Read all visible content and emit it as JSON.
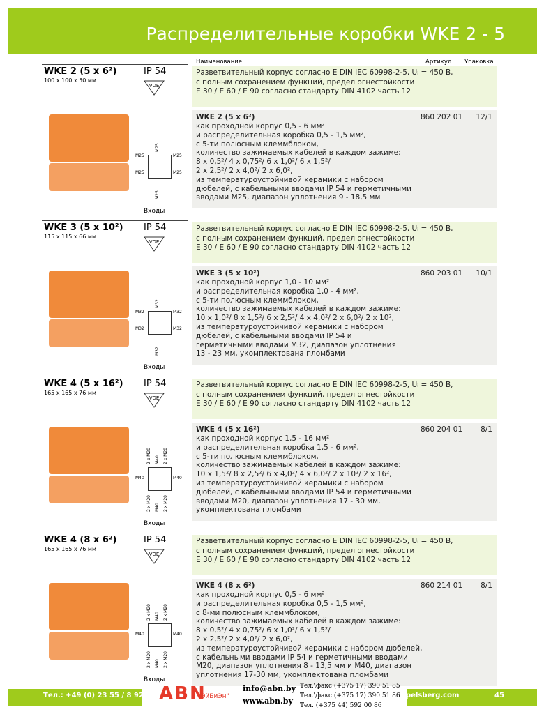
{
  "header": {
    "title": "Распределительные коробки WKE 2 - 5"
  },
  "columns": {
    "name": "Наименование",
    "article": "Артикул",
    "pack": "Упаковка"
  },
  "products": [
    {
      "name": "WKE 2 (5 x 6²)",
      "dims": "100 x 100 x 50 мм",
      "ip": "IP 54",
      "cert": "VDE",
      "general": [
        "Разветвительный корпус согласно E DIN IEC 60998-2-5, Uᵢ = 450 В,",
        "с полным сохранением функций, предел огнестойкости",
        "E 30 / E 60 / E 90 согласно стандарту DIN 4102 часть 12"
      ],
      "detail_title": "WKE 2 (5 x 6²)",
      "detail": [
        "как проходной корпус 0,5 - 6 мм²",
        "и распределительная коробка 0,5 - 1,5 мм²,",
        "с 5-ти полюсным клеммблоком,",
        "количество зажимаемых кабелей в каждом зажиме:",
        "8 x 0,5²/ 4 x 0,75²/ 6 x 1,0²/ 6 x 1,5²/",
        "2 x 2,5²/ 2 x 4,0²/ 2 x 6,0²,",
        "из температуроустойчивой керамики с набором",
        "дюбелей, с кабельными вводами IP 54 и герметичными",
        "вводами M25, диапазон уплотнения 9 - 18,5 мм"
      ],
      "article": "860 202 01",
      "pack": "12/1",
      "inputs": "Входы",
      "diagram": {
        "top": [
          "M25"
        ],
        "left": [
          "M25",
          "M25"
        ],
        "right": [
          "M25",
          "M25"
        ],
        "bottom": [
          "M25"
        ]
      }
    },
    {
      "name": "WKE 3 (5 x 10²)",
      "dims": "115 x 115 x 66 мм",
      "ip": "IP 54",
      "cert": "VDE",
      "general": [
        "Разветвительный корпус согласно E DIN IEC 60998-2-5, Uᵢ = 450 В,",
        "с полным сохранением функций, предел огнестойкости",
        "E 30 / E 60 / E 90 согласно стандарту DIN 4102 часть 12"
      ],
      "detail_title": "WKE 3 (5 x 10²)",
      "detail": [
        "как проходной корпус 1,0 - 10 мм²",
        "и распределительная коробка 1,0 - 4 мм²,",
        "с 5-ти полюсным клеммблоком,",
        "количество зажимаемых кабелей в каждом зажиме:",
        "10 x 1,0²/ 8 x 1,5²/ 6 x 2,5²/ 4 x 4,0²/ 2 x 6,0²/ 2 x 10²,",
        "из температуроустойчивой керамики с набором",
        "дюбелей, с кабельными вводами IP 54 и",
        "герметичными вводами M32, диапазон уплотнения",
        "13 - 23 мм, укомплектована пломбами"
      ],
      "article": "860 203 01",
      "pack": "10/1",
      "inputs": "Входы",
      "diagram": {
        "top": [
          "M32"
        ],
        "left": [
          "M32",
          "M32"
        ],
        "right": [
          "M32",
          "M32"
        ],
        "bottom": [
          "M32"
        ]
      }
    },
    {
      "name": "WKE 4 (5 x 16²)",
      "dims": "165 x 165 x 76 мм",
      "ip": "IP 54",
      "cert": "VDE",
      "general": [
        "Разветвительный корпус согласно E DIN IEC 60998-2-5, Uᵢ = 450 В,",
        "с полным сохранением функций, предел огнестойкости",
        "E 30 / E 60 / E 90 согласно стандарту DIN 4102 часть 12"
      ],
      "detail_title": "WKE 4 (5 x 16²)",
      "detail": [
        "как проходной корпус 1,5 - 16 мм²",
        "и распределительная коробка 1,5 - 6 мм²,",
        "с 5-ти полюсным клеммблоком,",
        "количество зажимаемых кабелей в каждом зажиме:",
        "10 x 1,5²/ 8 x 2,5²/ 6 x 4,0²/ 4 x 6,0²/ 2 x 10²/ 2 x 16²,",
        "из температуроустойчивой керамики с набором",
        "дюбелей, с кабельными вводами IP 54 и герметичными",
        "вводами M20, диапазон уплотнения 17 - 30 мм,",
        "укомплектована пломбами"
      ],
      "article": "860 204 01",
      "pack": "8/1",
      "inputs": "Входы",
      "diagram": {
        "top": [
          "2 x M20",
          "M40",
          "2 x M20"
        ],
        "left": [
          "M40"
        ],
        "right": [
          "M40"
        ],
        "bottom": [
          "2 x M20",
          "M40",
          "2 x M20"
        ]
      }
    },
    {
      "name": "WKE 4 (8 x 6²)",
      "dims": "165 x 165 x 76 мм",
      "ip": "IP 54",
      "cert": "VDE",
      "general": [
        "Разветвительный корпус согласно E DIN IEC 60998-2-5, Uᵢ = 450 В,",
        "с полным сохранением функций, предел огнестойкости",
        "E 30 / E 60 / E 90 согласно стандарту DIN 4102 часть 12"
      ],
      "detail_title": "WKE 4 (8 x 6²)",
      "detail": [
        "как проходной корпус 0,5 - 6 мм²",
        "и распределительная коробка 0,5 - 1,5 мм²,",
        "с 8-ми полюсным клеммблоком,",
        "количество зажимаемых кабелей в каждом зажиме:",
        "8 x 0,5²/ 4 x 0,75²/ 6 x 1,0²/ 6 x 1,5²/",
        "2 x 2,5²/ 2 x 4,0²/ 2 x 6,0²,",
        "из температуроустойчивой керамики с набором дюбелей,",
        "с кабельными вводами IP 54 и герметичными вводами",
        "M20, диапазон уплотнения 8 - 13,5 мм и M40, диапазон",
        "уплотнения 17-30 мм, укомплектована пломбами"
      ],
      "article": "860 214 01",
      "pack": "8/1",
      "inputs": "Входы",
      "diagram": {
        "top": [
          "2 x M20",
          "M40",
          "2 x M20"
        ],
        "left": [
          "M40"
        ],
        "right": [
          "M40"
        ],
        "bottom": [
          "2 x M20",
          "M40",
          "2 x M20"
        ]
      }
    }
  ],
  "footer": {
    "phone": "Тел.: +49 (0) 23 55 / 8 92",
    "logo": "ABN",
    "brand": "\"ЭйБиЭн\"",
    "email": "info@abn.by",
    "site": "www.abn.by",
    "contacts": [
      "Тел.\\факс (+375 17) 390 51 85",
      "Тел.\\факс (+375 17) 390 51 86",
      "Тел. (+375 44)  592 00 86"
    ],
    "web": "pelsberg.com",
    "page": "45"
  }
}
